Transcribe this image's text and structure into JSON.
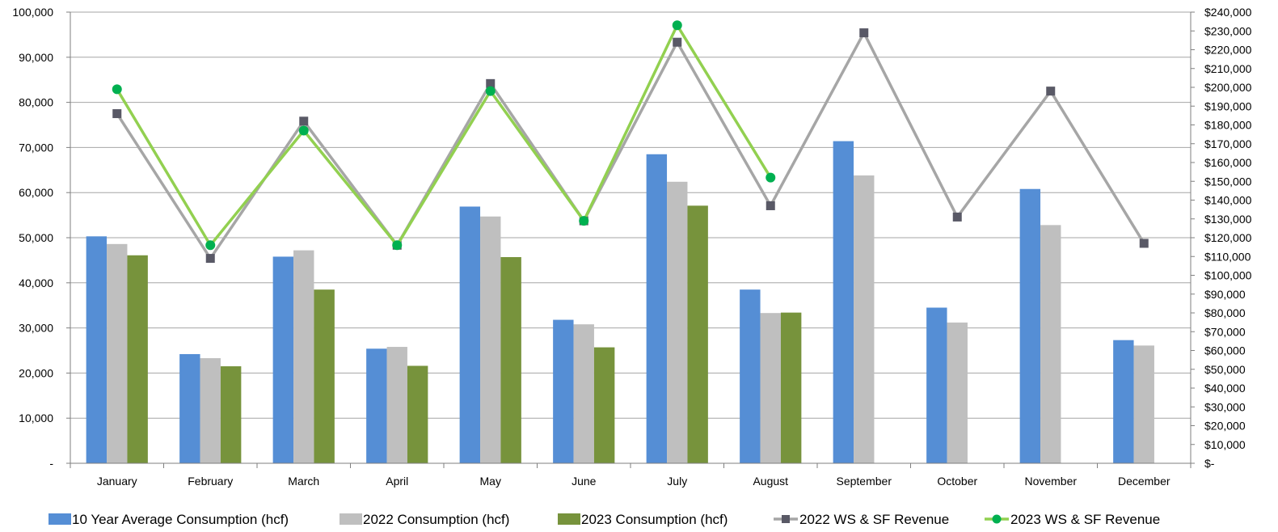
{
  "chart_data": {
    "type": "bar",
    "categories": [
      "January",
      "February",
      "March",
      "April",
      "May",
      "June",
      "July",
      "August",
      "September",
      "October",
      "November",
      "December"
    ],
    "series": [
      {
        "name": "10 Year Average Consumption (hcf)",
        "kind": "bar",
        "axis": "left",
        "color": "#558ED5",
        "values": [
          50300,
          24200,
          45800,
          25400,
          56900,
          31800,
          68500,
          38500,
          71400,
          34500,
          60800,
          27300
        ]
      },
      {
        "name": "2022 Consumption (hcf)",
        "kind": "bar",
        "axis": "left",
        "color": "#BFBFBF",
        "values": [
          48600,
          23300,
          47200,
          25800,
          54700,
          30800,
          62400,
          33300,
          63800,
          31200,
          52800,
          26100
        ]
      },
      {
        "name": "2023 Consumption (hcf)",
        "kind": "bar",
        "axis": "left",
        "color": "#77933C",
        "values": [
          46100,
          21500,
          38500,
          21600,
          45700,
          25700,
          57100,
          33400,
          null,
          null,
          null,
          null
        ]
      },
      {
        "name": "2022 WS & SF Revenue",
        "kind": "line",
        "axis": "right",
        "color": "#A6A6A6",
        "marker": "square",
        "marker_color": "#595966",
        "values": [
          186000,
          109000,
          182000,
          116000,
          202000,
          129000,
          224000,
          137000,
          229000,
          131000,
          198000,
          117000
        ]
      },
      {
        "name": "2023 WS & SF Revenue",
        "kind": "line",
        "axis": "right",
        "color": "#92D050",
        "marker": "circle",
        "marker_color": "#00B050",
        "values": [
          199000,
          116000,
          177000,
          116000,
          198000,
          129000,
          233000,
          152000,
          null,
          null,
          null,
          null
        ]
      }
    ],
    "y_left": {
      "min": 0,
      "max": 100000,
      "step": 10000,
      "tick_labels": [
        "-",
        "10,000",
        "20,000",
        "30,000",
        "40,000",
        "50,000",
        "60,000",
        "70,000",
        "80,000",
        "90,000",
        "100,000"
      ]
    },
    "y_right": {
      "min": 0,
      "max": 240000,
      "step": 10000,
      "tick_labels": [
        "$-",
        "$10,000",
        "$20,000",
        "$30,000",
        "$40,000",
        "$50,000",
        "$60,000",
        "$70,000",
        "$80,000",
        "$90,000",
        "$100,000",
        "$110,000",
        "$120,000",
        "$130,000",
        "$140,000",
        "$150,000",
        "$160,000",
        "$170,000",
        "$180,000",
        "$190,000",
        "$200,000",
        "$210,000",
        "$220,000",
        "$230,000",
        "$240,000"
      ]
    },
    "grid": true,
    "legend_position": "bottom"
  }
}
